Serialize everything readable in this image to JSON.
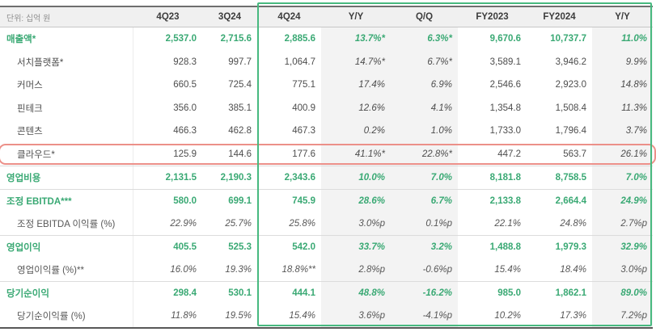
{
  "meta": {
    "unit_label": "단위: 십억 원"
  },
  "colors": {
    "accent_green": "#3aa974",
    "focus_border_green": "#47b97f",
    "highlight_border_red": "#ec9089",
    "shade_gray": "#f3f3f3"
  },
  "table": {
    "columns": [
      "4Q23",
      "3Q24",
      "4Q24",
      "Y/Y",
      "Q/Q",
      "FY2023",
      "FY2024",
      "Y/Y"
    ],
    "rows": [
      {
        "label": "매출액*",
        "indent": false,
        "style": "green",
        "highlight": false,
        "values": [
          "2,537.0",
          "2,715.6",
          "2,885.6",
          "13.7%*",
          "6.3%*",
          "9,670.6",
          "10,737.7",
          "11.0%"
        ]
      },
      {
        "label": "서치플랫폼*",
        "indent": true,
        "style": "normal",
        "highlight": false,
        "values": [
          "928.3",
          "997.7",
          "1,064.7",
          "14.7%*",
          "6.7%*",
          "3,589.1",
          "3,946.2",
          "9.9%"
        ]
      },
      {
        "label": "커머스",
        "indent": true,
        "style": "normal",
        "highlight": false,
        "values": [
          "660.5",
          "725.4",
          "775.1",
          "17.4%",
          "6.9%",
          "2,546.6",
          "2,923.0",
          "14.8%"
        ]
      },
      {
        "label": "핀테크",
        "indent": true,
        "style": "normal",
        "highlight": false,
        "values": [
          "356.0",
          "385.1",
          "400.9",
          "12.6%",
          "4.1%",
          "1,354.8",
          "1,508.4",
          "11.3%"
        ]
      },
      {
        "label": "콘텐츠",
        "indent": true,
        "style": "normal",
        "highlight": false,
        "values": [
          "466.3",
          "462.8",
          "467.3",
          "0.2%",
          "1.0%",
          "1,733.0",
          "1,796.4",
          "3.7%"
        ]
      },
      {
        "label": "클라우드*",
        "indent": true,
        "style": "normal",
        "highlight": true,
        "values": [
          "125.9",
          "144.6",
          "177.6",
          "41.1%*",
          "22.8%*",
          "447.2",
          "563.7",
          "26.1%"
        ]
      },
      {
        "label": "영업비용",
        "indent": false,
        "style": "green",
        "highlight": false,
        "sep": true,
        "values": [
          "2,131.5",
          "2,190.3",
          "2,343.6",
          "10.0%",
          "7.0%",
          "8,181.8",
          "8,758.5",
          "7.0%"
        ]
      },
      {
        "label": "조정 EBITDA***",
        "indent": false,
        "style": "green",
        "highlight": false,
        "sep": true,
        "values": [
          "580.0",
          "699.1",
          "745.9",
          "28.6%",
          "6.7%",
          "2,133.8",
          "2,664.4",
          "24.9%"
        ]
      },
      {
        "label": "조정 EBITDA 이익률 (%)",
        "indent": true,
        "style": "ratio",
        "highlight": false,
        "values": [
          "22.9%",
          "25.7%",
          "25.8%",
          "3.0%p",
          "0.1%p",
          "22.1%",
          "24.8%",
          "2.7%p"
        ]
      },
      {
        "label": "영업이익",
        "indent": false,
        "style": "green",
        "highlight": false,
        "sep": true,
        "values": [
          "405.5",
          "525.3",
          "542.0",
          "33.7%",
          "3.2%",
          "1,488.8",
          "1,979.3",
          "32.9%"
        ]
      },
      {
        "label": "영업이익률 (%)**",
        "indent": true,
        "style": "ratio",
        "highlight": false,
        "values": [
          "16.0%",
          "19.3%",
          "18.8%**",
          "2.8%p",
          "-0.6%p",
          "15.4%",
          "18.4%",
          "3.0%p"
        ]
      },
      {
        "label": "당기순이익",
        "indent": false,
        "style": "green",
        "highlight": false,
        "sep": true,
        "values": [
          "298.4",
          "530.1",
          "444.1",
          "48.8%",
          "-16.2%",
          "985.0",
          "1,862.1",
          "89.0%"
        ]
      },
      {
        "label": "당기순이익률 (%)",
        "indent": true,
        "style": "ratio",
        "highlight": false,
        "values": [
          "11.8%",
          "19.5%",
          "15.4%",
          "3.6%p",
          "-4.1%p",
          "10.2%",
          "17.3%",
          "7.2%p"
        ]
      }
    ]
  }
}
